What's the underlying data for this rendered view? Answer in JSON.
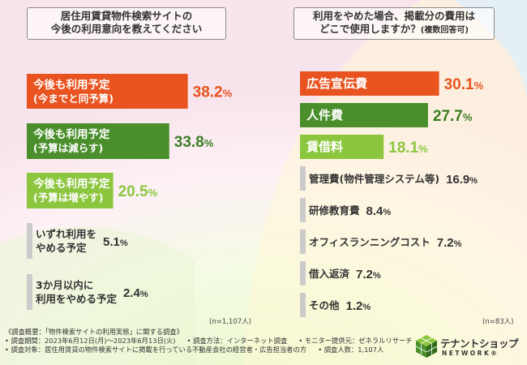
{
  "colors": {
    "orange": "#e8531f",
    "dark_green": "#4a8f2c",
    "light_green": "#8cc63f",
    "gray": "#cbcbcb",
    "pct_orange": "#e8531f",
    "pct_dark_green": "#3d7d22",
    "pct_light_green": "#8cc63f",
    "pct_gray": "#333333"
  },
  "left": {
    "title_line1": "居住用賃貸物件検索サイトの",
    "title_line2": "今後の利用意向を教えてください",
    "n_label": "(n=1,107人)"
  },
  "right": {
    "title_line1": "利用をやめた場合、掲載分の費用は",
    "title_line2": "どこで使用しますか？",
    "title_note": "(複数回答可)",
    "n_label": "(n=83人)"
  },
  "chart_data": [
    {
      "type": "bar",
      "orientation": "horizontal",
      "title": "居住用賃貸物件検索サイトの今後の利用意向を教えてください",
      "unit": "%",
      "n": "(n=1,107人)",
      "categories": [
        [
          "今後も利用予定",
          "(今までと同予算)"
        ],
        [
          "今後も利用予定",
          "(予算は減らす)"
        ],
        [
          "今後も利用予定",
          "(予算は増やす)"
        ],
        [
          "いずれ利用を",
          "やめる予定"
        ],
        [
          "3か月以内に",
          "利用をやめる予定"
        ]
      ],
      "values": [
        38.2,
        33.8,
        20.5,
        5.1,
        2.4
      ],
      "value_labels": [
        "38.2",
        "33.8",
        "20.5",
        "5.1",
        "2.4"
      ],
      "bar_colors": [
        "orange",
        "dark_green",
        "light_green",
        "gray",
        "gray"
      ]
    },
    {
      "type": "bar",
      "orientation": "horizontal",
      "title": "利用をやめた場合、掲載分の費用はどこで使用しますか？(複数回答可)",
      "unit": "%",
      "n": "(n=83人)",
      "categories": [
        [
          "広告宣伝費"
        ],
        [
          "人件費"
        ],
        [
          "賃借料"
        ],
        [
          "管理費(物件管理システム等)"
        ],
        [
          "研修教育費"
        ],
        [
          "オフィスランニングコスト"
        ],
        [
          "借入返済"
        ],
        [
          "その他"
        ]
      ],
      "values": [
        30.1,
        27.7,
        18.1,
        16.9,
        8.4,
        7.2,
        7.2,
        1.2
      ],
      "value_labels": [
        "30.1",
        "27.7",
        "18.1",
        "16.9",
        "8.4",
        "7.2",
        "7.2",
        "1.2"
      ],
      "bar_colors": [
        "orange",
        "dark_green",
        "light_green",
        "gray",
        "gray",
        "gray",
        "gray",
        "gray"
      ]
    }
  ],
  "footer": {
    "line1": "《調査概要：「物件検索サイトの利用実態」に関する調査》",
    "line2a": "• 調査期間：2023年6月12日(月)～2023年6月13日(火)",
    "line2b": "• 調査方法：インターネット調査",
    "line2c": "• モニター提供元：ゼネラルリサーチ",
    "line3a": "• 調査対象：居住用賃貸の物件検索サイトに掲載を行っている不動産会社の経営者・広告担当者の方",
    "line3b": "• 調査人数：1,107人"
  },
  "logo": {
    "main": "テナントショップ",
    "sub": "NETWORK®"
  }
}
